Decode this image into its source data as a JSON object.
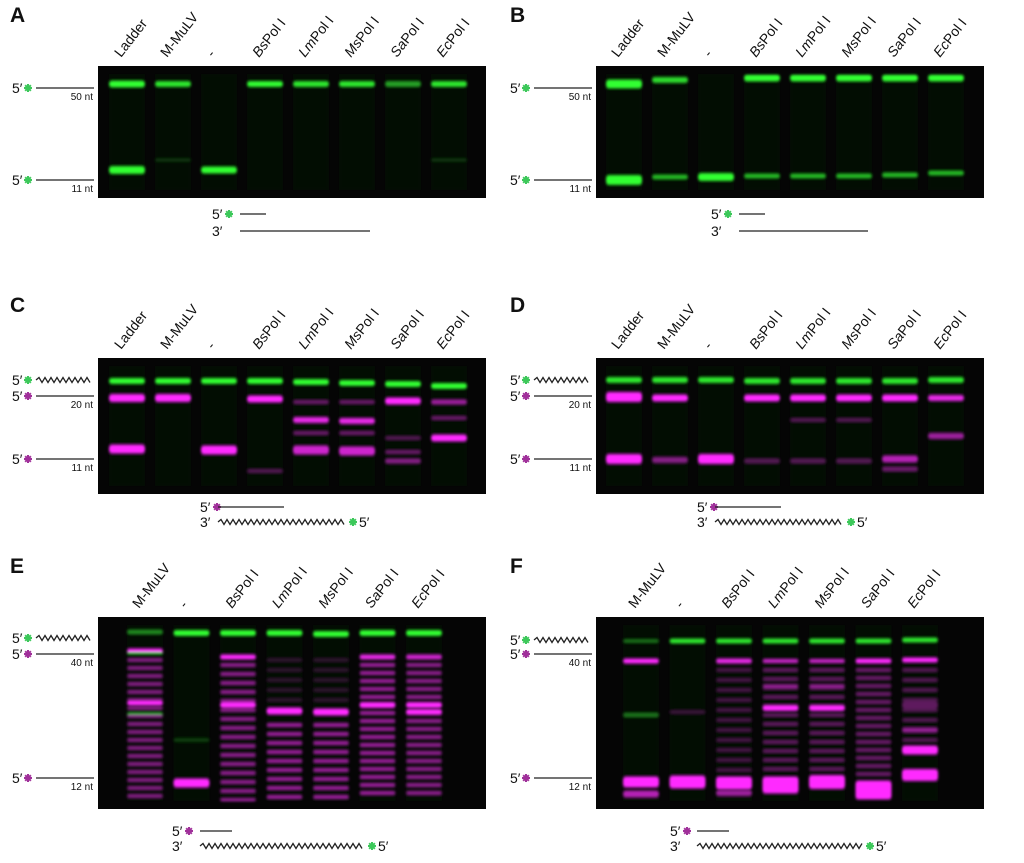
{
  "panels": [
    {
      "label": "A",
      "lanes": [
        "Ladder",
        "M-MuLV",
        "-",
        "BsPol I",
        "LmPol I",
        "MsPol I",
        "SaPol I",
        "EcPol I"
      ],
      "markers": [
        {
          "prime": "5′",
          "size": "50 nt"
        },
        {
          "prime": "5′",
          "size": "11 nt"
        }
      ],
      "substrate": {
        "top": "5′",
        "bottom": "3′"
      }
    },
    {
      "label": "B",
      "lanes": [
        "Ladder",
        "M-MuLV",
        "-",
        "BsPol I",
        "LmPol I",
        "MsPol I",
        "SaPol I",
        "EcPol I"
      ],
      "markers": [
        {
          "prime": "5′",
          "size": "50 nt"
        },
        {
          "prime": "5′",
          "size": "11 nt"
        }
      ],
      "substrate": {
        "top": "5′",
        "bottom": "3′"
      }
    },
    {
      "label": "C",
      "lanes": [
        "Ladder",
        "M-MuLV",
        "-",
        "BsPol I",
        "LmPol I",
        "MsPol I",
        "SaPol I",
        "EcPol I"
      ],
      "markers": [
        {
          "prime": "5′"
        },
        {
          "prime": "5′",
          "size": "20 nt"
        },
        {
          "prime": "5′",
          "size": "11 nt"
        }
      ],
      "substrate": {
        "top": "5′",
        "bottom": "3′",
        "end": "5′"
      }
    },
    {
      "label": "D",
      "lanes": [
        "Ladder",
        "M-MuLV",
        "-",
        "BsPol I",
        "LmPol I",
        "MsPol I",
        "SaPol I",
        "EcPol I"
      ],
      "markers": [
        {
          "prime": "5′"
        },
        {
          "prime": "5′",
          "size": "20 nt"
        },
        {
          "prime": "5′",
          "size": "11 nt"
        }
      ],
      "substrate": {
        "top": "5′",
        "bottom": "3′",
        "end": "5′"
      }
    },
    {
      "label": "E",
      "lanes": [
        "M-MuLV",
        "-",
        "BsPol I",
        "LmPol I",
        "MsPol I",
        "SaPol I",
        "EcPol I"
      ],
      "markers": [
        {
          "prime": "5′"
        },
        {
          "prime": "5′",
          "size": "40 nt"
        },
        {
          "prime": "5′",
          "size": "12 nt"
        }
      ],
      "substrate": {
        "top": "5′",
        "bottom": "3′",
        "end": "5′"
      }
    },
    {
      "label": "F",
      "lanes": [
        "M-MuLV",
        "-",
        "BsPol I",
        "LmPol I",
        "MsPol I",
        "SaPol I",
        "EcPol I"
      ],
      "markers": [
        {
          "prime": "5′"
        },
        {
          "prime": "5′",
          "size": "40 nt"
        },
        {
          "prime": "5′",
          "size": "12 nt"
        }
      ],
      "substrate": {
        "top": "5′",
        "bottom": "3′",
        "end": "5′"
      }
    }
  ]
}
